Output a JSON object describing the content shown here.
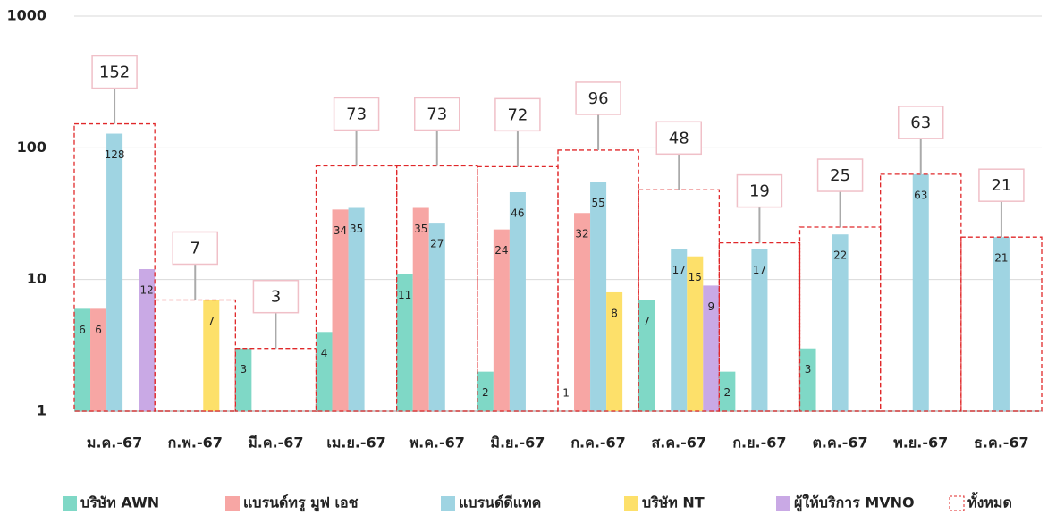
{
  "chart_data": {
    "type": "bar",
    "log_scale": true,
    "grid": true,
    "categories": [
      "ม.ค.-67",
      "ก.พ.-67",
      "มี.ค.-67",
      "เม.ย.-67",
      "พ.ค.-67",
      "มิ.ย.-67",
      "ก.ค.-67",
      "ส.ค.-67",
      "ก.ย.-67",
      "ต.ค.-67",
      "พ.ย.-67",
      "ธ.ค.-67"
    ],
    "series": [
      {
        "name": "บริษัท AWN",
        "color": "#7fd8c6",
        "values": [
          6,
          null,
          3,
          4,
          11,
          2,
          1,
          7,
          2,
          3,
          null,
          null
        ]
      },
      {
        "name": "แบรนด์ทรู มูฟ เอช",
        "color": "#f7a6a4",
        "values": [
          6,
          null,
          null,
          34,
          35,
          24,
          32,
          null,
          null,
          null,
          null,
          null
        ]
      },
      {
        "name": "แบรนด์ดีแทค",
        "color": "#9fd4e2",
        "values": [
          128,
          null,
          null,
          35,
          27,
          46,
          55,
          17,
          17,
          22,
          63,
          21
        ]
      },
      {
        "name": "บริษัท NT",
        "color": "#fde06a",
        "values": [
          null,
          7,
          null,
          null,
          null,
          null,
          8,
          15,
          null,
          null,
          null,
          null
        ]
      },
      {
        "name": "ผู้ให้บริการ MVNO",
        "color": "#c9a9e5",
        "values": [
          12,
          null,
          null,
          null,
          null,
          null,
          null,
          9,
          null,
          null,
          null,
          null
        ]
      }
    ],
    "total": {
      "name": "ทั้งหมด",
      "color": "#e0282a",
      "values": [
        152,
        7,
        3,
        73,
        73,
        72,
        96,
        48,
        19,
        25,
        63,
        21
      ]
    },
    "ylim": [
      1,
      1000
    ],
    "yticks": [
      1,
      10,
      100,
      1000
    ]
  }
}
